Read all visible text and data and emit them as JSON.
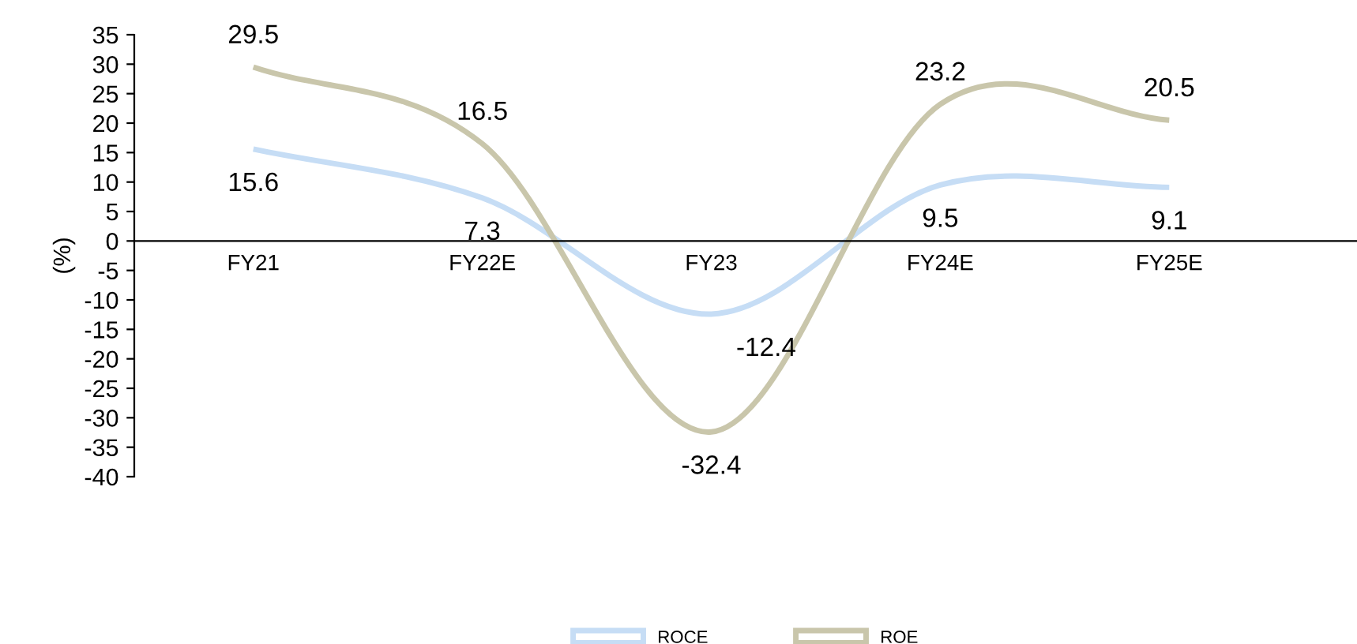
{
  "chart_data": {
    "type": "line",
    "ylabel": "(%)",
    "categories": [
      "FY21",
      "FY22E",
      "FY23",
      "FY24E",
      "FY25E"
    ],
    "series": [
      {
        "name": "ROCE",
        "color": "#c6ddf5",
        "values": [
          15.6,
          7.3,
          -12.4,
          9.5,
          9.1
        ]
      },
      {
        "name": "ROE",
        "color": "#c9c6ab",
        "values": [
          29.5,
          16.5,
          -32.4,
          23.2,
          20.5
        ]
      }
    ],
    "ylim": [
      -40,
      35
    ],
    "yticks": [
      -40,
      -35,
      -30,
      -25,
      -20,
      -15,
      -10,
      -5,
      0,
      5,
      10,
      15,
      20,
      25,
      30,
      35
    ],
    "data_labels": true,
    "legend": "bottom",
    "grid": false,
    "marker": "none",
    "line_style": "solid"
  }
}
